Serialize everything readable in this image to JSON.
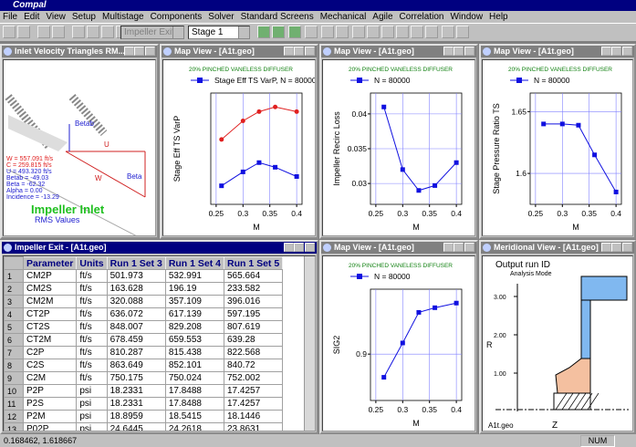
{
  "app_title": "Compal",
  "menu": [
    "File",
    "Edit",
    "View",
    "Setup",
    "Multistage",
    "Components",
    "Solver",
    "Standard Screens",
    "Mechanical",
    "Agile",
    "Correlation",
    "Window",
    "Help"
  ],
  "toolbar": {
    "component": "Impeller Exit",
    "stage": "Stage 1"
  },
  "windows": [
    "Inlet Velocity Triangles RM...",
    "Map View - [A1t.geo]",
    "Map View - [A1t.geo]",
    "Map View - [A1t.geo]",
    "Impeller Exit - [A1t.geo]",
    "Map View - [A1t.geo]",
    "Meridional View - [A1t.geo]"
  ],
  "velocity_triangles": {
    "labels": [
      "Betab",
      "U",
      "W",
      "Beta"
    ],
    "values": [
      "W = 557.091 ft/s",
      "C = 259.815 ft/s",
      "U = 493.320 ft/s",
      "Betab = -49.03",
      "Beta = -62.32",
      "Alpha = 0.00",
      "Incidence = -13.29"
    ],
    "heading": "Impeller Inlet",
    "subheading": "RMS Values"
  },
  "table": {
    "header": [
      "Parameter",
      "Units",
      "Run 1 Set 3",
      "Run 1 Set 4",
      "Run 1 Set 5"
    ],
    "rows": [
      [
        "1",
        "CM2P",
        "ft/s",
        "501.973",
        "532.991",
        "565.664"
      ],
      [
        "2",
        "CM2S",
        "ft/s",
        "163.628",
        "196.19",
        "233.582"
      ],
      [
        "3",
        "CM2M",
        "ft/s",
        "320.088",
        "357.109",
        "396.016"
      ],
      [
        "4",
        "CT2P",
        "ft/s",
        "636.072",
        "617.139",
        "597.195"
      ],
      [
        "5",
        "CT2S",
        "ft/s",
        "848.007",
        "829.208",
        "807.619"
      ],
      [
        "6",
        "CT2M",
        "ft/s",
        "678.459",
        "659.553",
        "639.28"
      ],
      [
        "7",
        "C2P",
        "ft/s",
        "810.287",
        "815.438",
        "822.568"
      ],
      [
        "8",
        "C2S",
        "ft/s",
        "863.649",
        "852.101",
        "840.72"
      ],
      [
        "9",
        "C2M",
        "ft/s",
        "750.175",
        "750.024",
        "752.002"
      ],
      [
        "10",
        "P2P",
        "psi",
        "18.2331",
        "17.8488",
        "17.4257"
      ],
      [
        "11",
        "P2S",
        "psi",
        "18.2331",
        "17.8488",
        "17.4257"
      ],
      [
        "12",
        "P2M",
        "psi",
        "18.8959",
        "18.5415",
        "18.1446"
      ],
      [
        "13",
        "P02P",
        "psi",
        "24.6445",
        "24.2618",
        "23.8631"
      ]
    ]
  },
  "meridional": {
    "title": "Output run ID",
    "mode": "Analysis Mode",
    "yticks": [
      "3.00",
      "2.00",
      "1.00"
    ],
    "ylabel": "R",
    "xlabel": "Z",
    "file": "A1t.geo"
  },
  "chart_data": [
    {
      "type": "line",
      "title": "20% PINCHED VANELESS DIFFUSER",
      "x_label": "M",
      "y_label": "Stage Eff TS VarP",
      "x": [
        0.26,
        0.3,
        0.33,
        0.36,
        0.4
      ],
      "xlim": [
        0.24,
        0.41
      ],
      "xticks": [
        0.25,
        0.3,
        0.35,
        0.4
      ],
      "ylim": [
        0.72,
        0.84
      ],
      "grid": true,
      "series": [
        {
          "color": "#e02020",
          "marker": "circle",
          "values": [
            0.79,
            0.81,
            0.82,
            0.825,
            0.82
          ]
        },
        {
          "name": "Stage Eff TS VarP, N = 80000",
          "color": "#1010e0",
          "marker": "square",
          "values": [
            0.74,
            0.755,
            0.765,
            0.76,
            0.75
          ]
        }
      ]
    },
    {
      "type": "line",
      "title": "20% PINCHED VANELESS DIFFUSER",
      "x_label": "M",
      "y_label": "Impeller Recirc  Loss",
      "x": [
        0.265,
        0.3,
        0.33,
        0.36,
        0.4
      ],
      "xlim": [
        0.24,
        0.41
      ],
      "xticks": [
        0.25,
        0.3,
        0.35,
        0.4
      ],
      "ylim": [
        0.027,
        0.043
      ],
      "yticks": [
        0.03,
        0.035,
        0.04
      ],
      "grid": true,
      "series": [
        {
          "name": "N = 80000",
          "color": "#1010e0",
          "marker": "square",
          "values": [
            0.041,
            0.032,
            0.029,
            0.0297,
            0.033
          ]
        }
      ]
    },
    {
      "type": "line",
      "title": "20% PINCHED VANELESS DIFFUSER",
      "x_label": "M",
      "y_label": "Stage Pressure Ratio TS",
      "x": [
        0.265,
        0.3,
        0.33,
        0.36,
        0.4
      ],
      "xlim": [
        0.24,
        0.41
      ],
      "xticks": [
        0.25,
        0.3,
        0.35,
        0.4
      ],
      "ylim": [
        1.575,
        1.665
      ],
      "yticks": [
        1.6,
        1.65
      ],
      "grid": true,
      "series": [
        {
          "name": "N = 80000",
          "color": "#1010e0",
          "marker": "square",
          "values": [
            1.64,
            1.64,
            1.639,
            1.615,
            1.585
          ]
        }
      ]
    },
    {
      "type": "line",
      "title": "20% PINCHED VANELESS DIFFUSER",
      "x_label": "M",
      "y_label": "SIG2",
      "x": [
        0.265,
        0.3,
        0.33,
        0.36,
        0.4
      ],
      "xlim": [
        0.24,
        0.41
      ],
      "xticks": [
        0.25,
        0.3,
        0.35,
        0.4
      ],
      "ylim": [
        0.85,
        0.97
      ],
      "yticks": [
        0.9
      ],
      "grid": true,
      "series": [
        {
          "name": "N = 80000",
          "color": "#1010e0",
          "marker": "square",
          "values": [
            0.875,
            0.912,
            0.945,
            0.95,
            0.955
          ]
        }
      ]
    }
  ],
  "status": [
    "0.168462, 1.618667",
    "NUM"
  ]
}
